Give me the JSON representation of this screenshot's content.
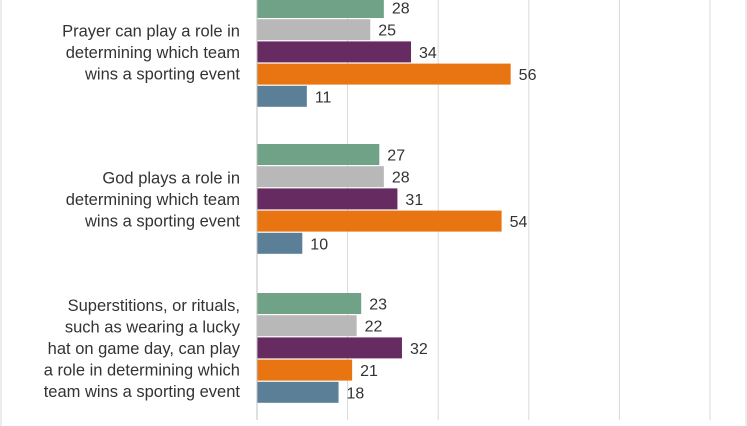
{
  "chart_data": {
    "type": "bar",
    "orientation": "horizontal",
    "grid": true,
    "legend": "none",
    "title": "",
    "xlabel": "",
    "ylabel": "",
    "xlim": [
      0,
      100
    ],
    "categories": [
      "Prayer can play a role in determining which team wins a sporting event",
      "God plays a role in determining which team wins a sporting event",
      "Superstitions, or rituals, such as wearing a lucky hat on game day, can play a role in determining which team wins a sporting event"
    ],
    "category_lines": [
      [
        "Prayer can play a role in",
        "determining which team",
        "wins a sporting event"
      ],
      [
        "God plays a role in",
        "determining which team",
        "wins a sporting event"
      ],
      [
        "Superstitions, or rituals,",
        "such as wearing a lucky",
        "hat on game day, can play",
        "a role in determining which",
        "team wins a sporting event"
      ]
    ],
    "series": [
      {
        "color": "#6fa287",
        "values": [
          28,
          27,
          23
        ]
      },
      {
        "color": "#b8b8b8",
        "values": [
          25,
          28,
          22
        ]
      },
      {
        "color": "#662c62",
        "values": [
          34,
          31,
          32
        ]
      },
      {
        "color": "#e87511",
        "values": [
          56,
          54,
          21
        ]
      },
      {
        "color": "#5b7f96",
        "values": [
          11,
          10,
          18
        ]
      }
    ]
  }
}
